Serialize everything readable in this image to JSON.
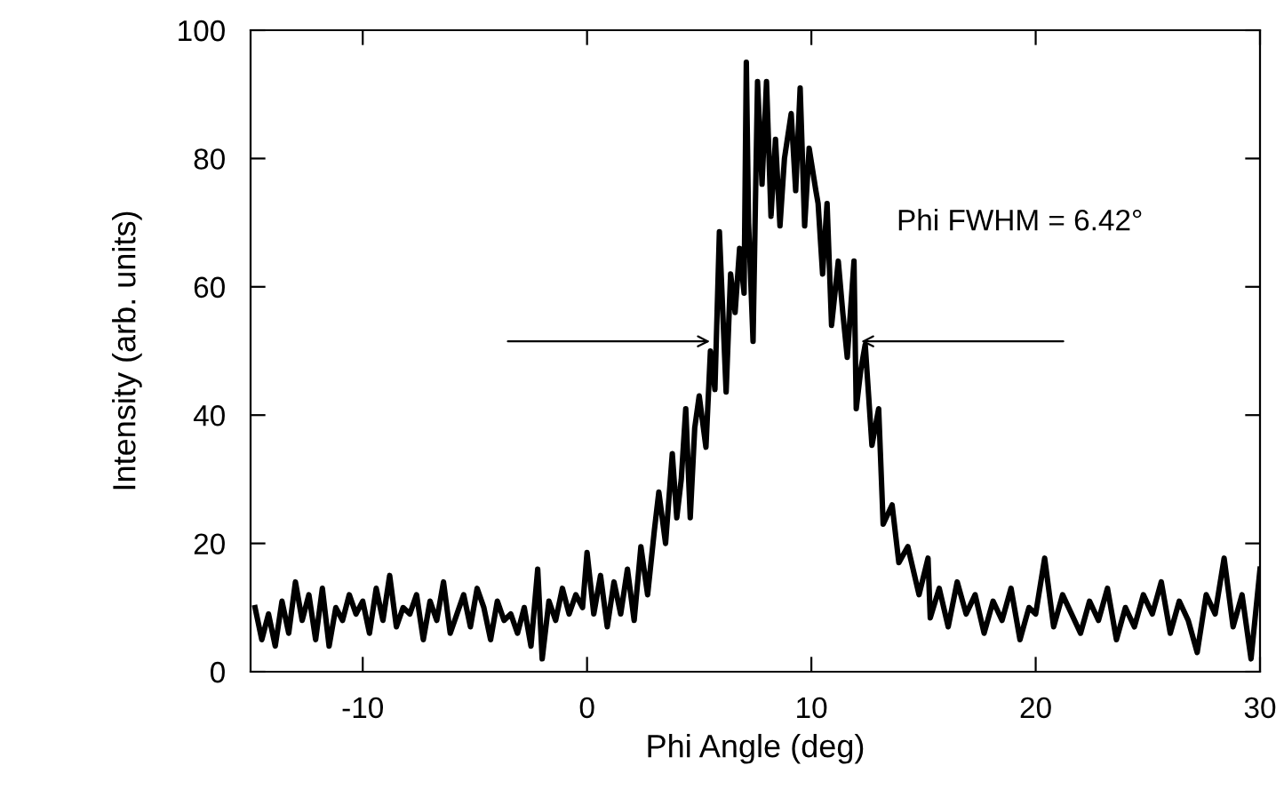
{
  "chart_data": {
    "type": "line",
    "xlabel": "Phi Angle (deg)",
    "ylabel": "Intensity (arb. units)",
    "xlim": [
      -15,
      30
    ],
    "xticks": [
      -10,
      0,
      10,
      20,
      30
    ],
    "ylim": [
      0,
      100
    ],
    "yticks": [
      0,
      20,
      40,
      60,
      80,
      100
    ],
    "grid": false,
    "legend": false,
    "marker": "none",
    "line_style": "solid",
    "annotations": [
      "Phi FWHM = 6.42°"
    ],
    "series": [
      {
        "color": "#000000",
        "x": [
          -14.8,
          -14.5,
          -14.2,
          -13.9,
          -13.6,
          -13.3,
          -13.0,
          -12.7,
          -12.4,
          -12.1,
          -11.8,
          -11.5,
          -11.2,
          -10.9,
          -10.6,
          -10.3,
          -10.0,
          -9.7,
          -9.4,
          -9.1,
          -8.8,
          -8.5,
          -8.2,
          -7.9,
          -7.6,
          -7.3,
          -7.0,
          -6.7,
          -6.4,
          -6.1,
          -5.8,
          -5.5,
          -5.2,
          -4.9,
          -4.6,
          -4.3,
          -4.0,
          -3.7,
          -3.4,
          -3.1,
          -2.8,
          -2.5,
          -2.2,
          -2.0,
          -1.7,
          -1.4,
          -1.1,
          -0.8,
          -0.5,
          -0.2,
          0.0,
          0.3,
          0.6,
          0.9,
          1.2,
          1.5,
          1.8,
          2.1,
          2.4,
          2.7,
          3.0,
          3.2,
          3.5,
          3.8,
          4.0,
          4.2,
          4.4,
          4.6,
          4.8,
          5.0,
          5.3,
          5.5,
          5.7,
          5.9,
          6.2,
          6.4,
          6.6,
          6.8,
          7.0,
          7.1,
          7.2,
          7.4,
          7.6,
          7.8,
          8.0,
          8.2,
          8.4,
          8.6,
          8.8,
          9.1,
          9.3,
          9.5,
          9.7,
          9.9,
          10.2,
          10.3,
          10.5,
          10.7,
          10.9,
          11.2,
          11.4,
          11.6,
          11.9,
          12.0,
          12.2,
          12.4,
          12.7,
          13.0,
          13.2,
          13.6,
          13.9,
          14.3,
          14.8,
          15.2,
          15.3,
          15.7,
          16.1,
          16.5,
          16.9,
          17.3,
          17.7,
          18.1,
          18.5,
          18.9,
          19.3,
          19.7,
          20.0,
          20.4,
          20.8,
          21.2,
          21.6,
          22.0,
          22.4,
          22.8,
          23.2,
          23.6,
          24.0,
          24.4,
          24.8,
          25.2,
          25.6,
          26.0,
          26.4,
          26.8,
          27.2,
          27.6,
          28.0,
          28.4,
          28.8,
          29.2,
          29.6,
          30.0
        ],
        "values": [
          10,
          5,
          9,
          4,
          11,
          6,
          14,
          8,
          12,
          5,
          13,
          4,
          10,
          8,
          12,
          9,
          11,
          6,
          13,
          8,
          15,
          7,
          10,
          9,
          12,
          5,
          11,
          8,
          14,
          6,
          9,
          12,
          7,
          13,
          10,
          5,
          11,
          8,
          9,
          6,
          10,
          4,
          16,
          2,
          11,
          8,
          13,
          9,
          12,
          10,
          18.6,
          9,
          15,
          7,
          14,
          9,
          16,
          8,
          19.5,
          12,
          22,
          28,
          20,
          34,
          24,
          30,
          41,
          24,
          38,
          43,
          35,
          50,
          44,
          68.6,
          43.6,
          62,
          56,
          66,
          59,
          95,
          70,
          51.5,
          92,
          76,
          92,
          71,
          83,
          69.5,
          80,
          87,
          75,
          91,
          69.5,
          81.6,
          75,
          73,
          62,
          73,
          54,
          64,
          56,
          49,
          64,
          41,
          47,
          51,
          35.3,
          41,
          23,
          26,
          17,
          19.5,
          12,
          17.7,
          8.4,
          13,
          7,
          14,
          9,
          12,
          6,
          11,
          8,
          13,
          5,
          10,
          9,
          17.7,
          7,
          12,
          9,
          6,
          11,
          8,
          13,
          5,
          10,
          7,
          12,
          9,
          14,
          6,
          11,
          8,
          3,
          12,
          9,
          17.7,
          7,
          12,
          2,
          16
        ]
      }
    ]
  }
}
